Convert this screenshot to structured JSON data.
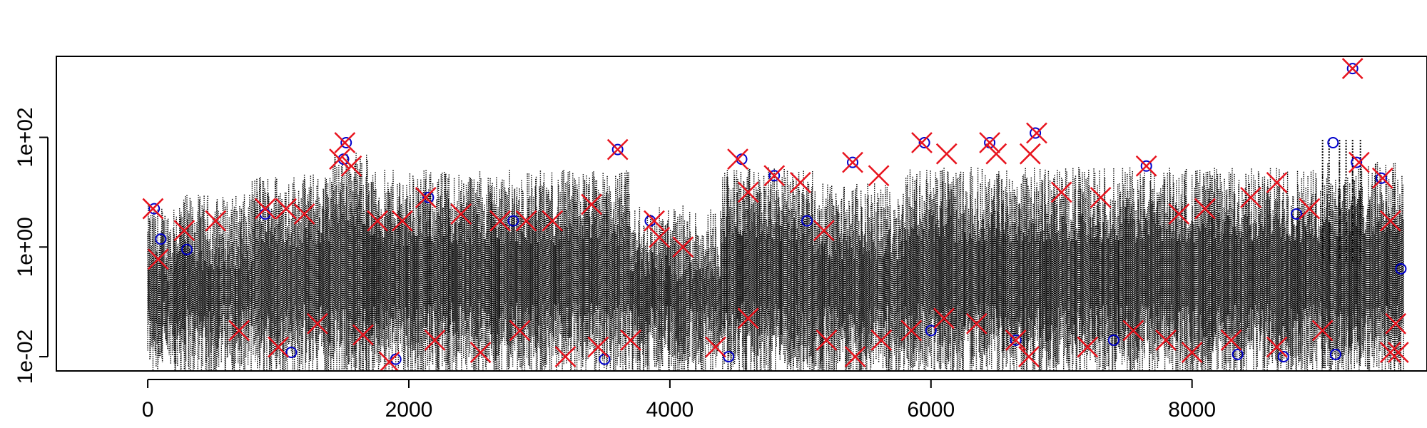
{
  "chart_data": {
    "type": "scatter",
    "title": "",
    "xlabel": "",
    "ylabel": "",
    "xlim": [
      -700,
      9800
    ],
    "ylim": [
      0.0055,
      3000
    ],
    "y_scale": "log",
    "x_ticks": [
      {
        "value": 0,
        "label": "0"
      },
      {
        "value": 2000,
        "label": "2000"
      },
      {
        "value": 4000,
        "label": "4000"
      },
      {
        "value": 6000,
        "label": "6000"
      },
      {
        "value": 8000,
        "label": "8000"
      }
    ],
    "y_ticks": [
      {
        "value": 0.01,
        "label": "1e-02"
      },
      {
        "value": 1,
        "label": "1e+00"
      },
      {
        "value": 100,
        "label": "1e+02"
      }
    ],
    "grid": false,
    "legend": "none",
    "colors": {
      "line": "#000000",
      "observed": "#0000cc",
      "flagged": "#e8141e"
    },
    "series": [
      {
        "role": "line",
        "style": "dotted vertical lines, dense",
        "x_range": [
          0,
          9620
        ],
        "y_typical_range": [
          0.005,
          30
        ]
      },
      {
        "role": "observed",
        "marker": "circle",
        "points": [
          [
            50,
            5
          ],
          [
            100,
            1.4
          ],
          [
            300,
            0.9
          ],
          [
            900,
            4
          ],
          [
            1500,
            40
          ],
          [
            1520,
            80
          ],
          [
            2150,
            8
          ],
          [
            2800,
            3
          ],
          [
            3600,
            60
          ],
          [
            3850,
            3
          ],
          [
            4550,
            40
          ],
          [
            4800,
            20
          ],
          [
            5050,
            3
          ],
          [
            5400,
            35
          ],
          [
            5950,
            80
          ],
          [
            6450,
            80
          ],
          [
            6800,
            120
          ],
          [
            7650,
            30
          ],
          [
            8800,
            4
          ],
          [
            9080,
            80
          ],
          [
            9230,
            1800
          ],
          [
            9260,
            35
          ],
          [
            9450,
            18
          ],
          [
            9600,
            0.4
          ],
          [
            1100,
            0.012
          ],
          [
            1900,
            0.009
          ],
          [
            3500,
            0.009
          ],
          [
            4450,
            0.01
          ],
          [
            6000,
            0.03
          ],
          [
            6650,
            0.02
          ],
          [
            7400,
            0.02
          ],
          [
            8350,
            0.011
          ],
          [
            8700,
            0.01
          ],
          [
            9100,
            0.011
          ]
        ]
      },
      {
        "role": "flagged",
        "marker": "x",
        "points": [
          [
            40,
            5
          ],
          [
            80,
            0.6
          ],
          [
            280,
            2
          ],
          [
            520,
            3
          ],
          [
            900,
            5
          ],
          [
            1060,
            5
          ],
          [
            1200,
            4
          ],
          [
            1470,
            40
          ],
          [
            1510,
            80
          ],
          [
            1560,
            30
          ],
          [
            1760,
            3
          ],
          [
            1950,
            3
          ],
          [
            2130,
            8
          ],
          [
            2400,
            4
          ],
          [
            2700,
            3
          ],
          [
            2900,
            3
          ],
          [
            3100,
            3
          ],
          [
            3400,
            6
          ],
          [
            3600,
            60
          ],
          [
            3880,
            3
          ],
          [
            3920,
            1.5
          ],
          [
            4100,
            1
          ],
          [
            4520,
            40
          ],
          [
            4600,
            10
          ],
          [
            4800,
            20
          ],
          [
            5000,
            15
          ],
          [
            5180,
            2
          ],
          [
            5400,
            35
          ],
          [
            5600,
            20
          ],
          [
            5930,
            80
          ],
          [
            6120,
            50
          ],
          [
            6450,
            80
          ],
          [
            6500,
            50
          ],
          [
            6760,
            50
          ],
          [
            6810,
            120
          ],
          [
            7000,
            10
          ],
          [
            7300,
            8
          ],
          [
            7650,
            30
          ],
          [
            7900,
            4
          ],
          [
            8100,
            5
          ],
          [
            8450,
            8
          ],
          [
            8650,
            15
          ],
          [
            8900,
            5
          ],
          [
            9230,
            1800
          ],
          [
            9280,
            35
          ],
          [
            9460,
            18
          ],
          [
            9520,
            3
          ],
          [
            9560,
            0.04
          ],
          [
            9580,
            0.012
          ],
          [
            700,
            0.03
          ],
          [
            1000,
            0.015
          ],
          [
            1300,
            0.04
          ],
          [
            1650,
            0.025
          ],
          [
            1850,
            0.008
          ],
          [
            2200,
            0.02
          ],
          [
            2550,
            0.012
          ],
          [
            2850,
            0.03
          ],
          [
            3200,
            0.01
          ],
          [
            3450,
            0.015
          ],
          [
            3700,
            0.02
          ],
          [
            4350,
            0.015
          ],
          [
            4600,
            0.05
          ],
          [
            5200,
            0.02
          ],
          [
            5420,
            0.01
          ],
          [
            5620,
            0.02
          ],
          [
            5850,
            0.03
          ],
          [
            6100,
            0.05
          ],
          [
            6350,
            0.04
          ],
          [
            6650,
            0.02
          ],
          [
            6750,
            0.01
          ],
          [
            7200,
            0.015
          ],
          [
            7550,
            0.03
          ],
          [
            7800,
            0.02
          ],
          [
            8000,
            0.012
          ],
          [
            8300,
            0.02
          ],
          [
            8650,
            0.015
          ],
          [
            9000,
            0.03
          ],
          [
            9520,
            0.012
          ]
        ]
      }
    ]
  }
}
